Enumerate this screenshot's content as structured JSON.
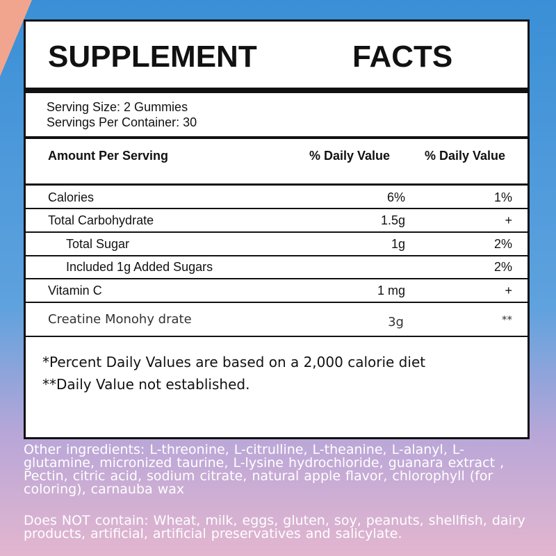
{
  "title": {
    "left": "SUPPLEMENT",
    "right": "FACTS"
  },
  "serving": {
    "size": "Serving Size: 2 Gummies",
    "per_container": "Servings Per Container: 30"
  },
  "header": {
    "amount": "Amount Per Serving",
    "dv1": "% Daily Value",
    "dv2": "% Daily Value"
  },
  "rows": [
    {
      "name": "Calories",
      "v1": "6%",
      "v2": "1%"
    },
    {
      "name": "Total Carbohydrate",
      "v1": "1.5g",
      "v2": "+"
    },
    {
      "name": "Total Sugar",
      "v1": "1g",
      "v2": "2%"
    },
    {
      "name": "Included 1g Added Sugars",
      "v1": "",
      "v2": "2%"
    },
    {
      "name": "Vitamin C",
      "v1": "1 mg",
      "v2": "+"
    },
    {
      "name": "Creatine Monohy drate",
      "v1": "3g",
      "v2": "**"
    }
  ],
  "footnotes": {
    "percent": "*Percent Daily Values are based on a 2,000 calorie diet",
    "not_established": "**Daily Value not established."
  },
  "other_ingredients": "Other ingredients: L-threonine, L-citrulline, L-theanine, L-alanyl, L-glutamine, micronized taurine, L-lysine hydrochloride, guanara extract , Pectin, citric acid, sodium citrate, natural apple flavor, chlorophyll (for coloring), carnauba wax",
  "does_not_contain": "Does NOT contain: Wheat, milk, eggs, gluten, soy, peanuts, shellfish, dairy products, artificial, artificial preservatives and salicylate.",
  "colors": {
    "background_top": "#3a8fd6",
    "background_bottom": "#e3b6cf",
    "corner_accent": "#f2a58e"
  }
}
